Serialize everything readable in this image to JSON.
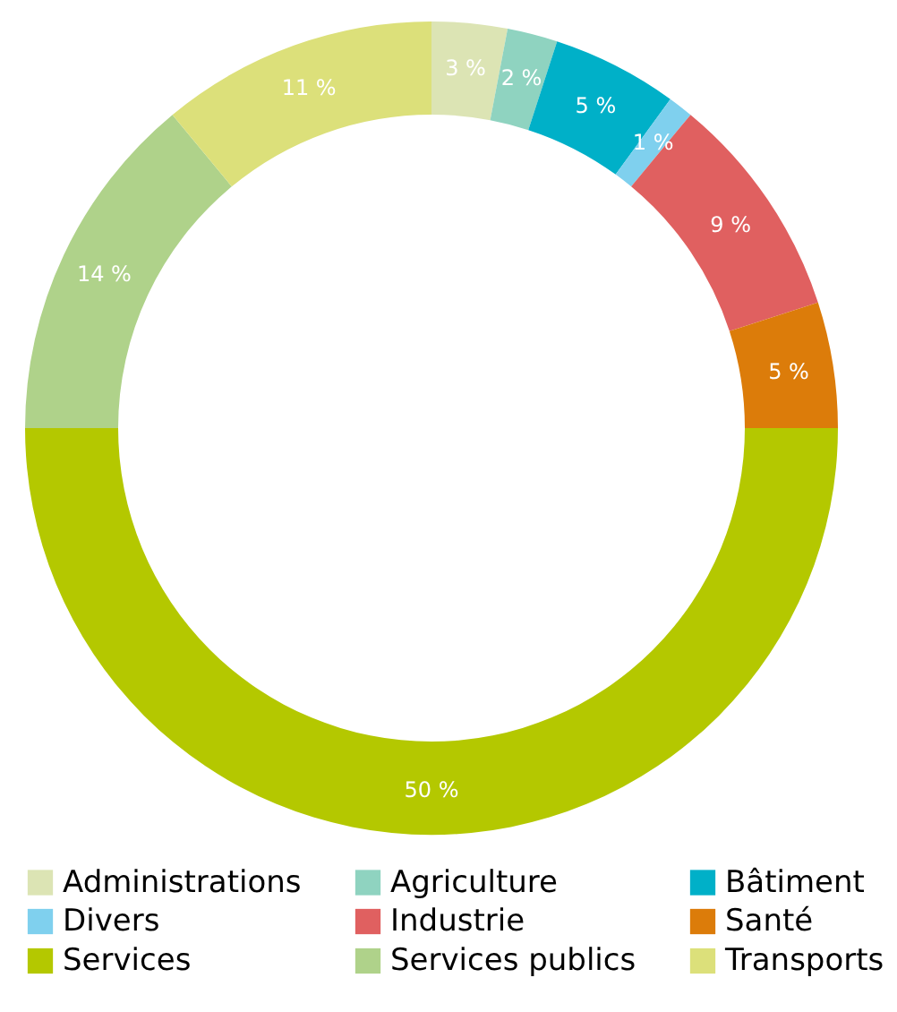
{
  "chart_data": {
    "type": "donut",
    "categories": [
      "Administrations",
      "Agriculture",
      "Bâtiment",
      "Divers",
      "Industrie",
      "Santé",
      "Services",
      "Services publics",
      "Transports"
    ],
    "values": [
      3,
      2,
      5,
      1,
      9,
      5,
      50,
      14,
      11
    ],
    "colors": [
      "#dce4b4",
      "#8fd3c0",
      "#00b0c8",
      "#7fd0ee",
      "#e06060",
      "#dc7c0a",
      "#b4c800",
      "#afd28a",
      "#dce07a"
    ],
    "value_labels": [
      "3 %",
      "2 %",
      "5 %",
      "1 %",
      "9 %",
      "5 %",
      "50 %",
      "14 %",
      "11 %"
    ],
    "legend": "bottom"
  }
}
